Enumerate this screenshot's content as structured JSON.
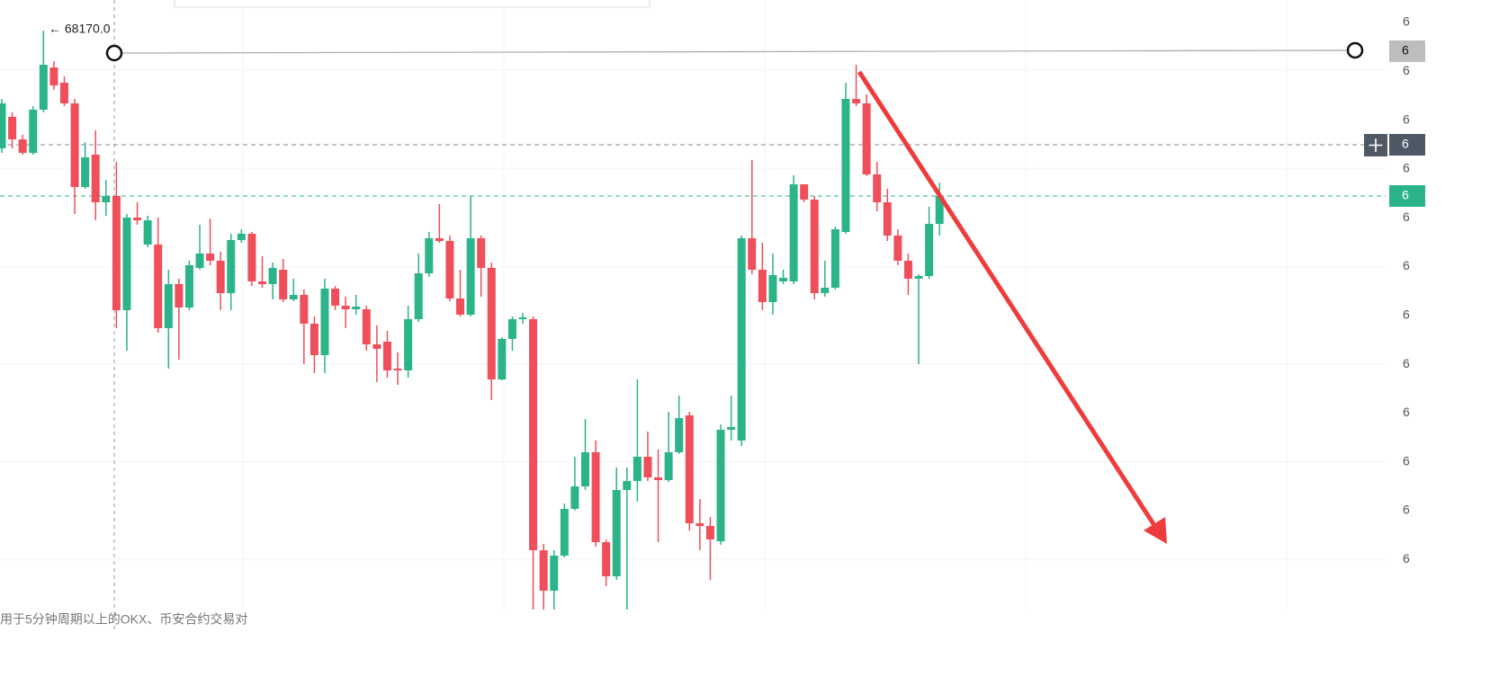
{
  "chart_data": {
    "type": "candlestick",
    "annotation": "← 68170.0",
    "price_axis_labels": [
      "6",
      "6",
      "6",
      "6",
      "6",
      "6",
      "6",
      "6",
      "6",
      "6",
      "6",
      "6"
    ],
    "price_markers": [
      "6",
      "6",
      "6"
    ],
    "footer": "用于5分钟周期以上的OKX、币安合约交易对",
    "up_color": "#2bb38a",
    "down_color": "#ee4f5b",
    "ylim": [
      67456,
      68204
    ],
    "open": [
      68039,
      68074,
      68049,
      68034,
      68082,
      68129,
      68112,
      68089,
      67996,
      68032,
      67979,
      67986,
      67859,
      67962,
      67932,
      67932,
      67839,
      67888,
      67862,
      67906,
      67922,
      67914,
      67878,
      67937,
      67944,
      67891,
      67888,
      67904,
      67871,
      67876,
      67844,
      67809,
      67883,
      67864,
      67860,
      67860,
      67821,
      67824,
      67794,
      67792,
      67849,
      67900,
      67939,
      67936,
      67872,
      67854,
      67939,
      67906,
      67782,
      67827,
      67849,
      67849,
      67592,
      67547,
      67586,
      67638,
      67663,
      67701,
      67601,
      67563,
      67659,
      67669,
      67696,
      67673,
      67670,
      67701,
      67742,
      67622,
      67619,
      67602,
      67726,
      67714,
      67939,
      67904,
      67868,
      67891,
      67891,
      67999,
      67982,
      67878,
      67884,
      67946,
      68094,
      68089,
      68010,
      67979,
      67942,
      67914,
      67894,
      67897,
      67955
    ],
    "high": [
      68094,
      68079,
      68054,
      68086,
      68170,
      68136,
      68119,
      68094,
      68046,
      68059,
      68004,
      68024,
      67966,
      67979,
      67964,
      67962,
      67904,
      67894,
      67914,
      67954,
      67961,
      67924,
      67944,
      67949,
      67946,
      67919,
      67912,
      67916,
      67894,
      67882,
      67852,
      67894,
      67886,
      67874,
      67876,
      67864,
      67842,
      67836,
      67812,
      67864,
      67922,
      67946,
      67977,
      67942,
      67904,
      67986,
      67942,
      67912,
      67829,
      67852,
      67856,
      67852,
      67599,
      67592,
      67644,
      67696,
      67738,
      67714,
      67604,
      67684,
      67684,
      67782,
      67724,
      67704,
      67746,
      67764,
      67746,
      67649,
      67629,
      67732,
      67764,
      67942,
      68026,
      67934,
      67922,
      67904,
      68009,
      67999,
      67986,
      67914,
      67952,
      68112,
      68132,
      68099,
      68024,
      67994,
      67949,
      67922,
      67899,
      67974,
      68001
    ],
    "low": [
      68034,
      68039,
      68032,
      68032,
      68079,
      68104,
      68086,
      67966,
      67994,
      67959,
      67964,
      67839,
      67814,
      67954,
      67929,
      67834,
      67794,
      67804,
      67859,
      67904,
      67909,
      67859,
      67859,
      67934,
      67886,
      67884,
      67871,
      67868,
      67869,
      67799,
      67789,
      67789,
      67859,
      67839,
      67854,
      67814,
      67779,
      67784,
      67776,
      67784,
      67846,
      67896,
      67934,
      67869,
      67852,
      67852,
      67874,
      67759,
      67781,
      67814,
      67844,
      67526,
      67526,
      67526,
      67584,
      67636,
      67659,
      67596,
      67552,
      67559,
      67526,
      67646,
      67669,
      67601,
      67668,
      67699,
      67614,
      67592,
      67559,
      67598,
      67714,
      67708,
      67899,
      67859,
      67854,
      67888,
      67888,
      67979,
      67871,
      67874,
      67882,
      67944,
      68086,
      68008,
      67969,
      67936,
      67909,
      67876,
      67799,
      67894,
      67942
    ],
    "close": [
      68089,
      68049,
      68034,
      68082,
      68132,
      68109,
      68089,
      67996,
      68029,
      67979,
      67986,
      67859,
      67962,
      67959,
      67959,
      67839,
      67888,
      67862,
      67909,
      67922,
      67914,
      67878,
      67937,
      67944,
      67891,
      67888,
      67906,
      67871,
      67876,
      67844,
      67809,
      67883,
      67864,
      67860,
      67863,
      67821,
      67816,
      67792,
      67792,
      67849,
      67900,
      67939,
      67936,
      67872,
      67854,
      67939,
      67906,
      67782,
      67827,
      67849,
      67851,
      67592,
      67547,
      67586,
      67638,
      67663,
      67701,
      67601,
      67563,
      67659,
      67669,
      67696,
      67673,
      67670,
      67701,
      67739,
      67622,
      67619,
      67604,
      67726,
      67729,
      67939,
      67904,
      67868,
      67898,
      67895,
      67999,
      67982,
      67878,
      67884,
      67949,
      68094,
      68089,
      68010,
      67979,
      67942,
      67914,
      67894,
      67897,
      67955,
      67986
    ]
  }
}
